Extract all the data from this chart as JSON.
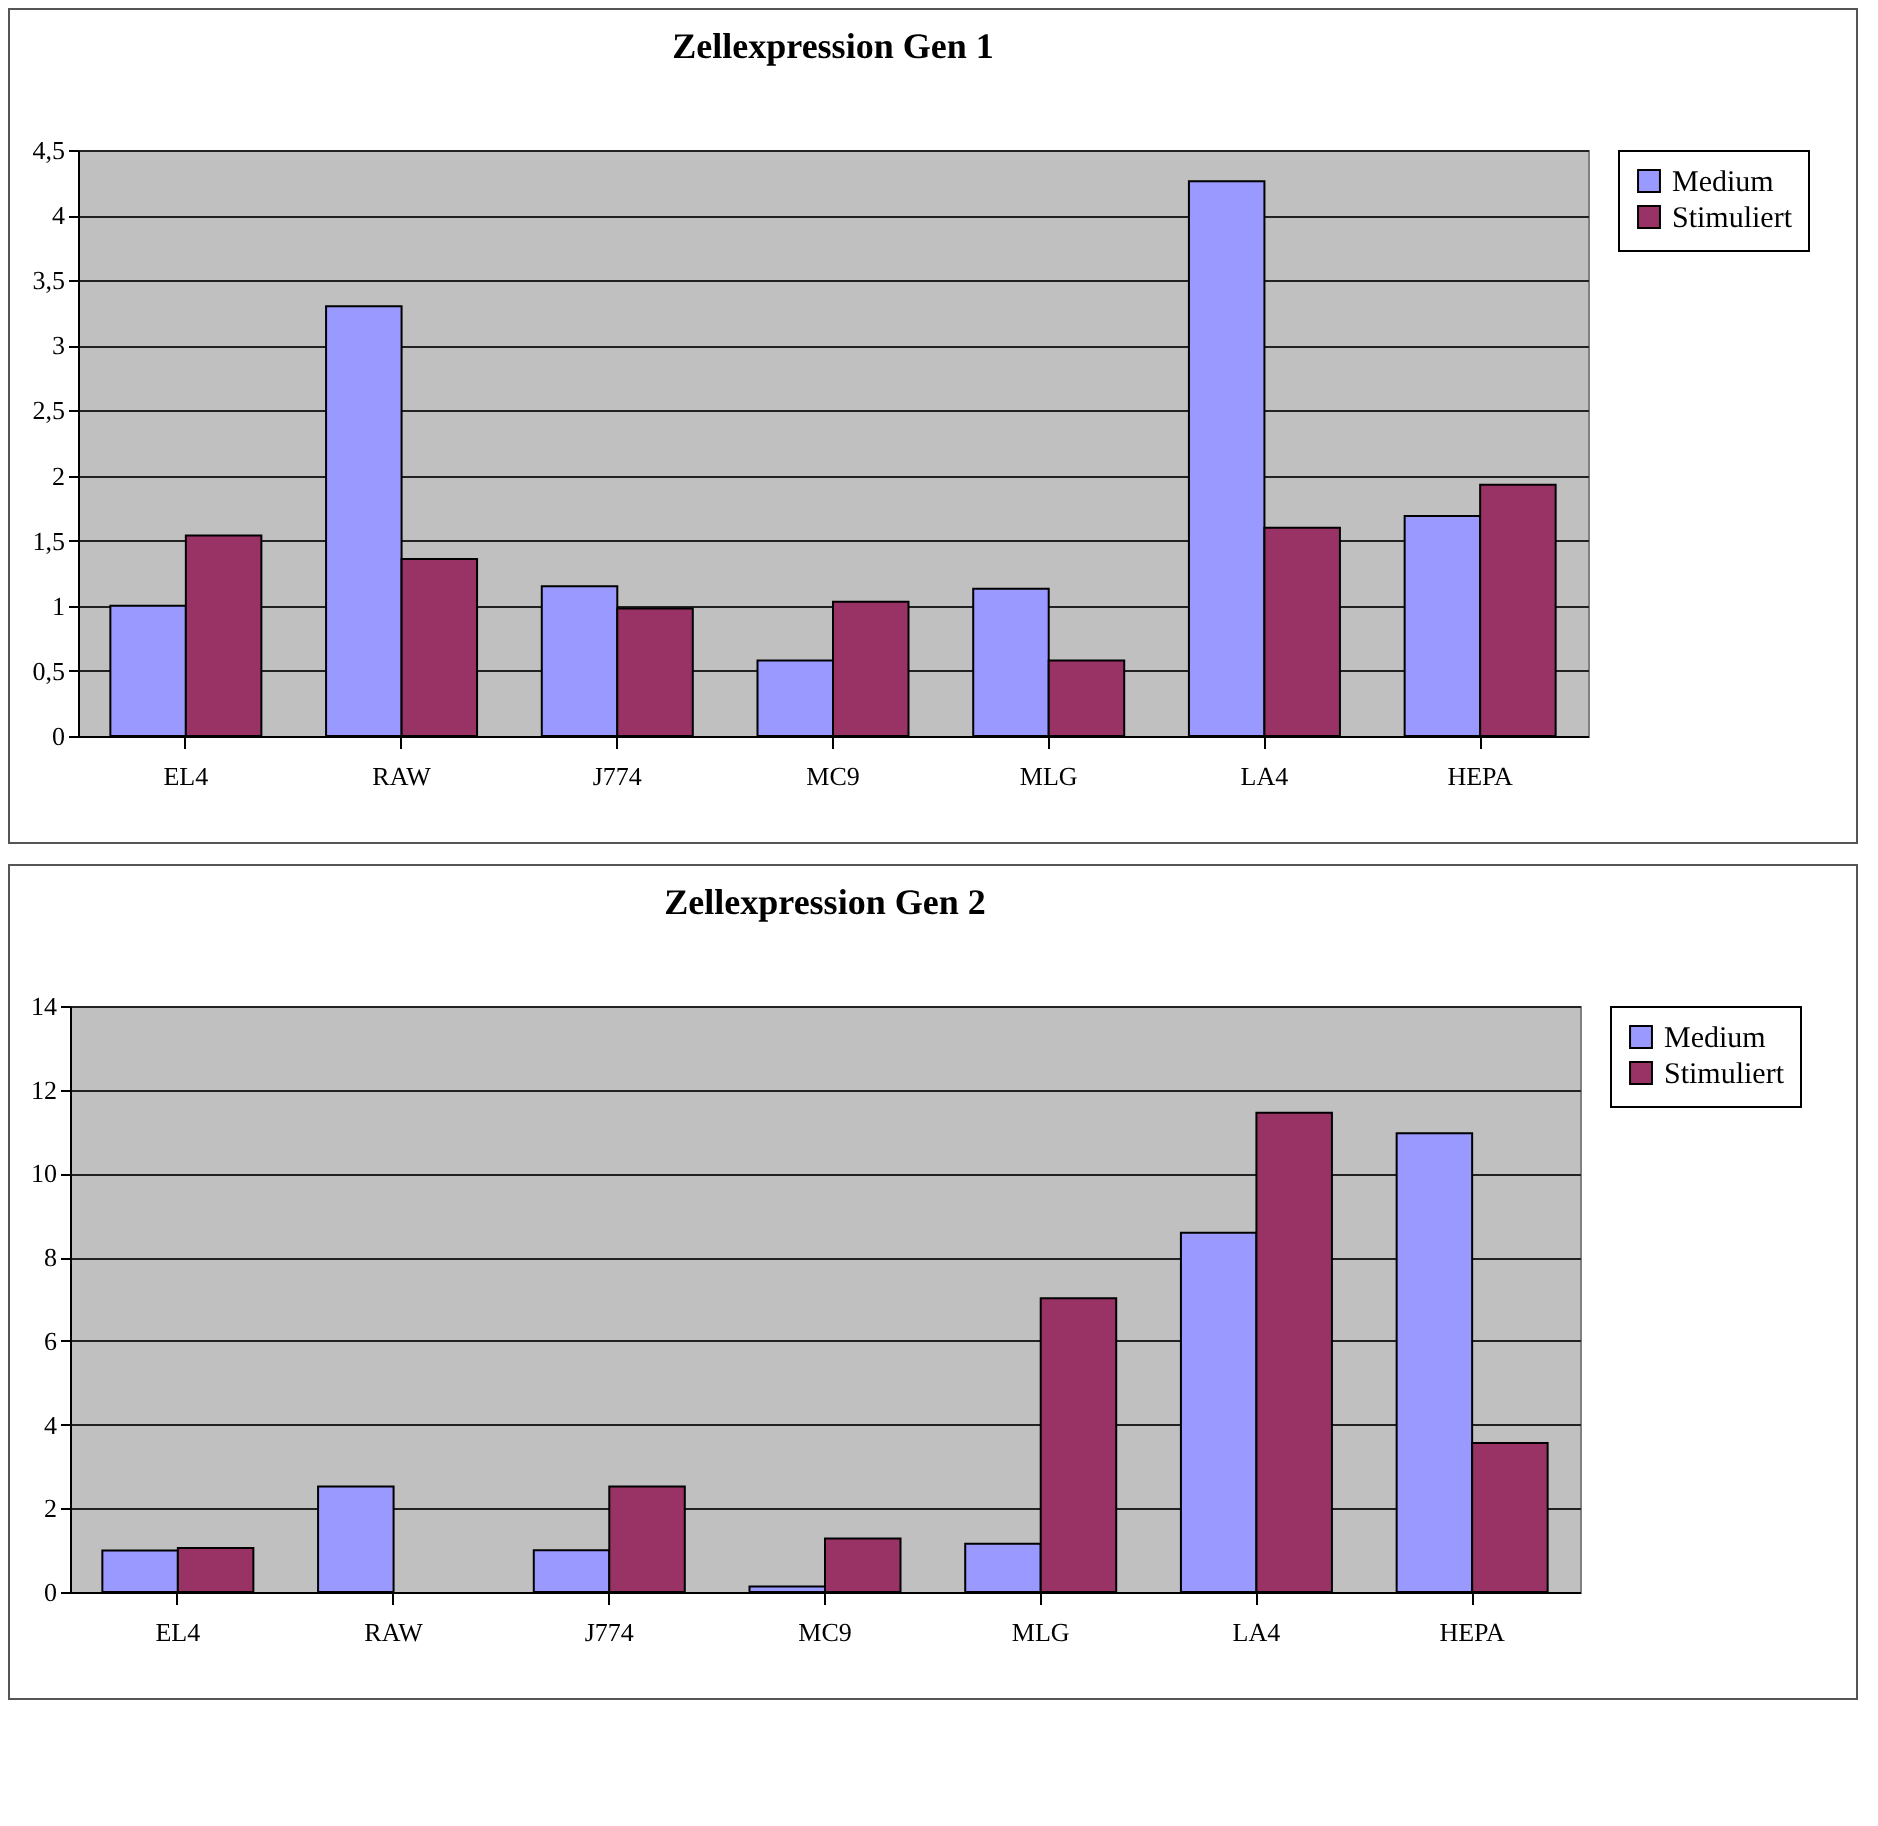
{
  "chart_data": [
    {
      "type": "bar",
      "title": "Zellexpression Gen 1",
      "categories": [
        "EL4",
        "RAW",
        "J774",
        "MC9",
        "MLG",
        "LA4",
        "HEPA"
      ],
      "series": [
        {
          "name": "Medium",
          "color": "#9999ff",
          "values": [
            1.0,
            3.3,
            1.15,
            0.58,
            1.13,
            4.26,
            1.69
          ]
        },
        {
          "name": "Stimuliert",
          "color": "#993366",
          "values": [
            1.54,
            1.36,
            0.98,
            1.03,
            0.58,
            1.6,
            1.93
          ]
        }
      ],
      "ylim": [
        0,
        4.5
      ],
      "yticks": [
        0,
        {
          "value": 0.5,
          "label": "0,5"
        },
        1,
        {
          "value": 1.5,
          "label": "1,5"
        },
        2,
        {
          "value": 2.5,
          "label": "2,5"
        },
        3,
        {
          "value": 3.5,
          "label": "3,5"
        },
        4,
        {
          "value": 4.5,
          "label": "4,5"
        }
      ],
      "grid": "y",
      "legend": "right"
    },
    {
      "type": "bar",
      "title": "Zellexpression Gen 2",
      "categories": [
        "EL4",
        "RAW",
        "J774",
        "MC9",
        "MLG",
        "LA4",
        "HEPA"
      ],
      "series": [
        {
          "name": "Medium",
          "color": "#9999ff",
          "values": [
            0.99,
            2.52,
            1.0,
            0.13,
            1.15,
            8.58,
            10.96
          ]
        },
        {
          "name": "Stimuliert",
          "color": "#993366",
          "values": [
            1.05,
            null,
            2.52,
            1.28,
            7.02,
            11.45,
            3.56
          ]
        }
      ],
      "ylim": [
        0,
        14
      ],
      "yticks": [
        0,
        2,
        4,
        6,
        8,
        10,
        12,
        14
      ],
      "grid": "y",
      "legend": "right"
    }
  ]
}
